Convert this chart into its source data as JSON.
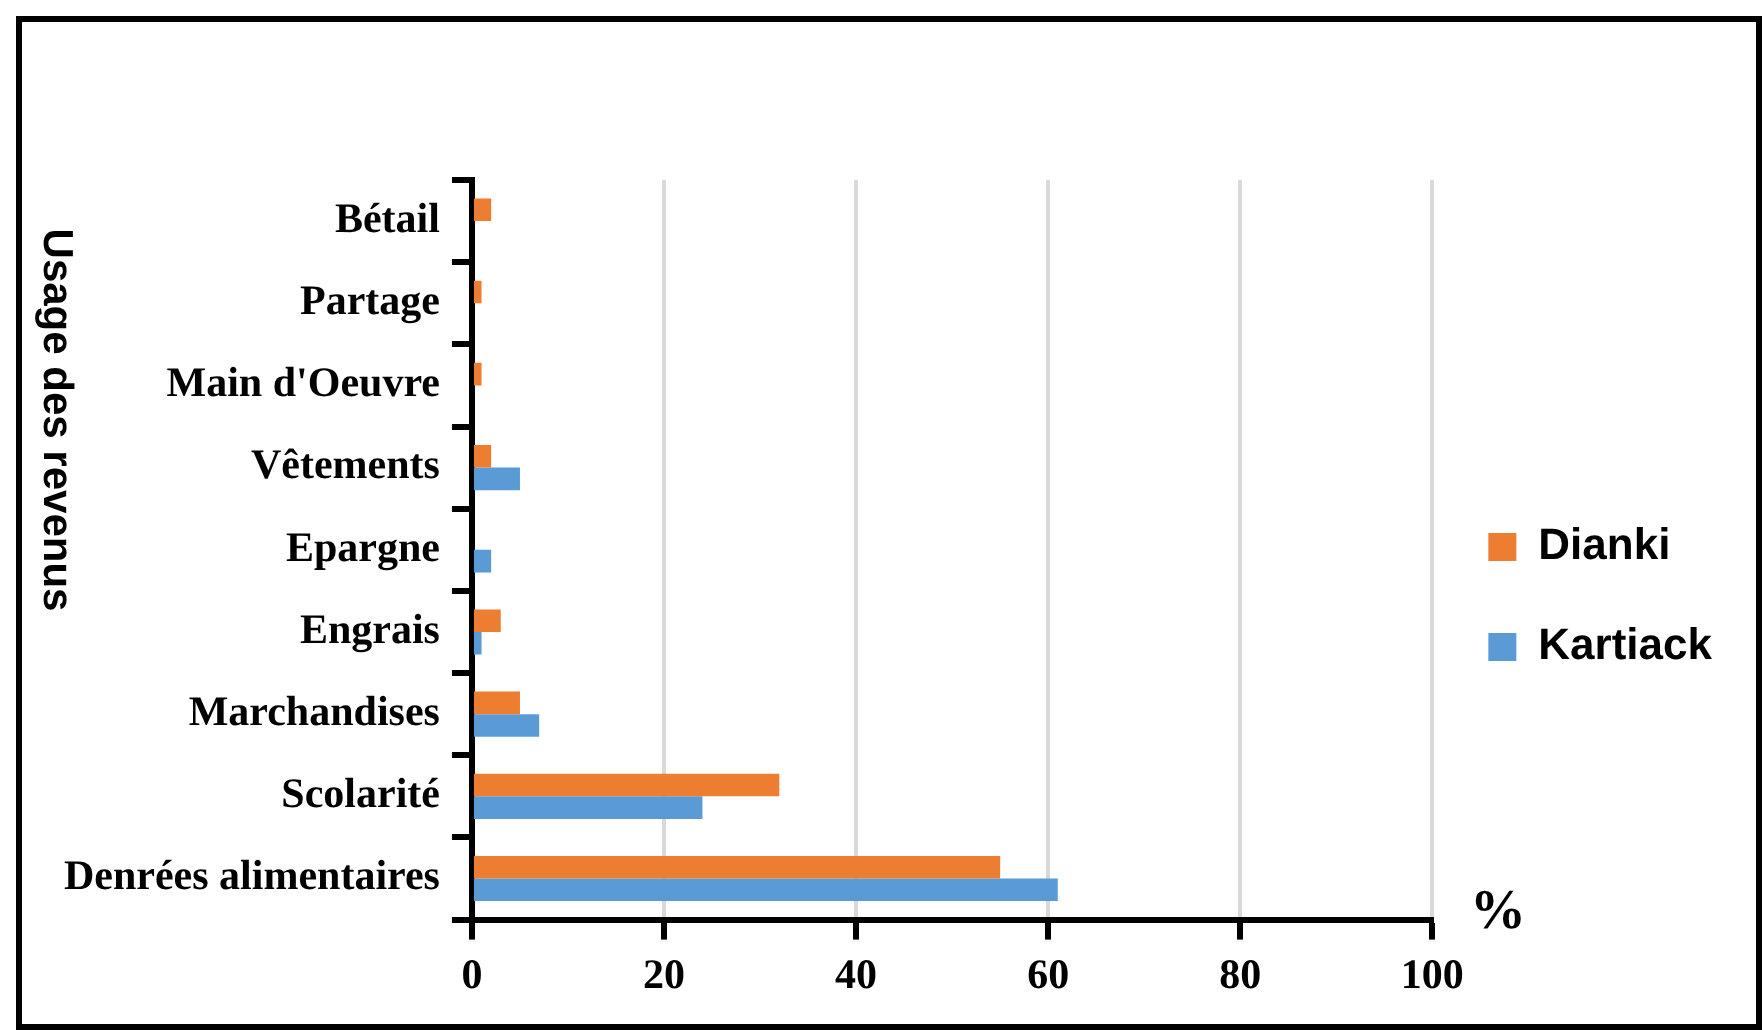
{
  "chart_data": {
    "type": "bar",
    "orientation": "horizontal",
    "ylabel": "Usage des revenus",
    "xlabel": "%",
    "categories": [
      "Bétail",
      "Partage",
      "Main d'Oeuvre",
      "Vêtements",
      "Epargne",
      "Engrais",
      "Marchandises",
      "Scolarité",
      "Denrées alimentaires"
    ],
    "series": [
      {
        "name": "Dianki",
        "color": "#ed7d31",
        "values": [
          2,
          1,
          1,
          2,
          0,
          3,
          5,
          32,
          55
        ]
      },
      {
        "name": "Kartiack",
        "color": "#5b9bd5",
        "values": [
          0,
          0,
          0,
          5,
          2,
          1,
          7,
          24,
          61
        ]
      }
    ],
    "xlim": [
      0,
      100
    ],
    "xticks": [
      0,
      20,
      40,
      60,
      80,
      100
    ],
    "grid": "x",
    "legend": "right"
  }
}
